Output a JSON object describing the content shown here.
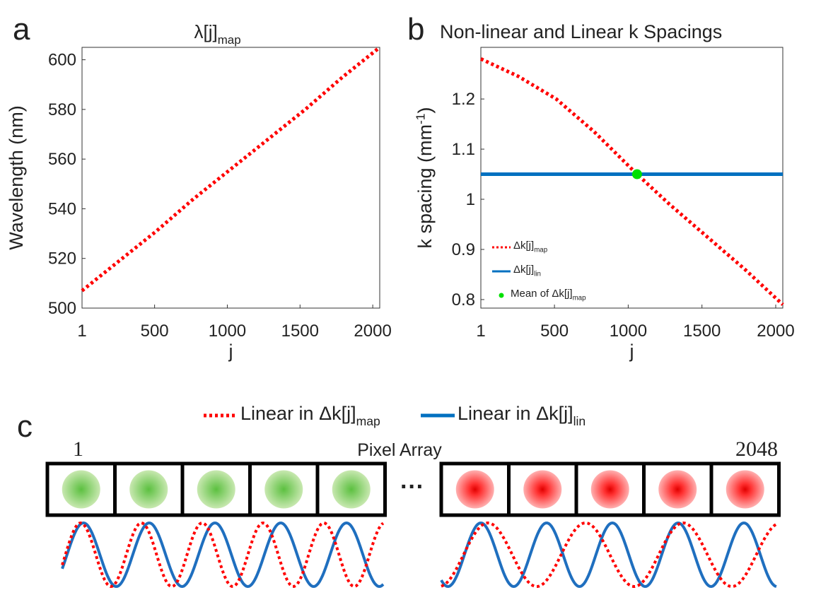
{
  "chart_data": [
    {
      "type": "line",
      "panel_label": "a",
      "title": "λ[j]",
      "title_subscript": "map",
      "xlabel": "j",
      "ylabel": "Wavelength (nm)",
      "x": [
        1,
        256,
        512,
        768,
        1024,
        1280,
        1536,
        1792,
        2048
      ],
      "values": [
        507,
        519,
        531,
        544,
        556,
        568,
        580,
        593,
        605
      ],
      "color": "#ff0000",
      "style": "dotted",
      "xlim": [
        1,
        2048
      ],
      "ylim": [
        500,
        605
      ],
      "xticks": [
        1,
        500,
        1000,
        1500,
        2000
      ],
      "yticks": [
        500,
        520,
        540,
        560,
        580,
        600
      ],
      "grid": false
    },
    {
      "type": "line",
      "panel_label": "b",
      "title": "Non-linear and Linear k Spacings",
      "xlabel": "j",
      "ylabel": "k spacing (mm",
      "ylabel_superscript": "-1",
      "ylabel_end": ")",
      "series": [
        {
          "name": "Δk[j]",
          "name_subscript": "map",
          "color": "#ff0000",
          "style": "dotted",
          "x": [
            1,
            256,
            512,
            768,
            1060,
            1280,
            1536,
            1792,
            2048
          ],
          "values": [
            1.28,
            1.245,
            1.2,
            1.135,
            1.05,
            0.99,
            0.925,
            0.86,
            0.79
          ]
        },
        {
          "name": "Δk[j]",
          "name_subscript": "lin",
          "color": "#0070c0",
          "style": "solid",
          "x": [
            1,
            2048
          ],
          "values": [
            1.05,
            1.05
          ]
        },
        {
          "name": "Mean of Δk[j]",
          "name_subscript": "map",
          "color": "#00e000",
          "style": "marker",
          "x": [
            1060
          ],
          "values": [
            1.05
          ]
        }
      ],
      "xlim": [
        1,
        2048
      ],
      "ylim": [
        0.783,
        1.303
      ],
      "xticks": [
        1,
        500,
        1000,
        1500,
        2000
      ],
      "yticks": [
        0.8,
        0.9,
        1,
        1.1,
        1.2
      ],
      "grid": false,
      "legend": "lower-left"
    }
  ],
  "diagram": {
    "panel_label": "c",
    "legend": [
      {
        "text": "Linear in Δk[j]",
        "subscript": "map",
        "color": "#ff0000",
        "style": "dotted"
      },
      {
        "text": "Linear in Δk[j]",
        "subscript": "lin",
        "color": "#0070c0",
        "style": "solid"
      }
    ],
    "first_pixel": "1",
    "title": "Pixel Array",
    "last_pixel": "2048",
    "ellipsis": "···"
  }
}
